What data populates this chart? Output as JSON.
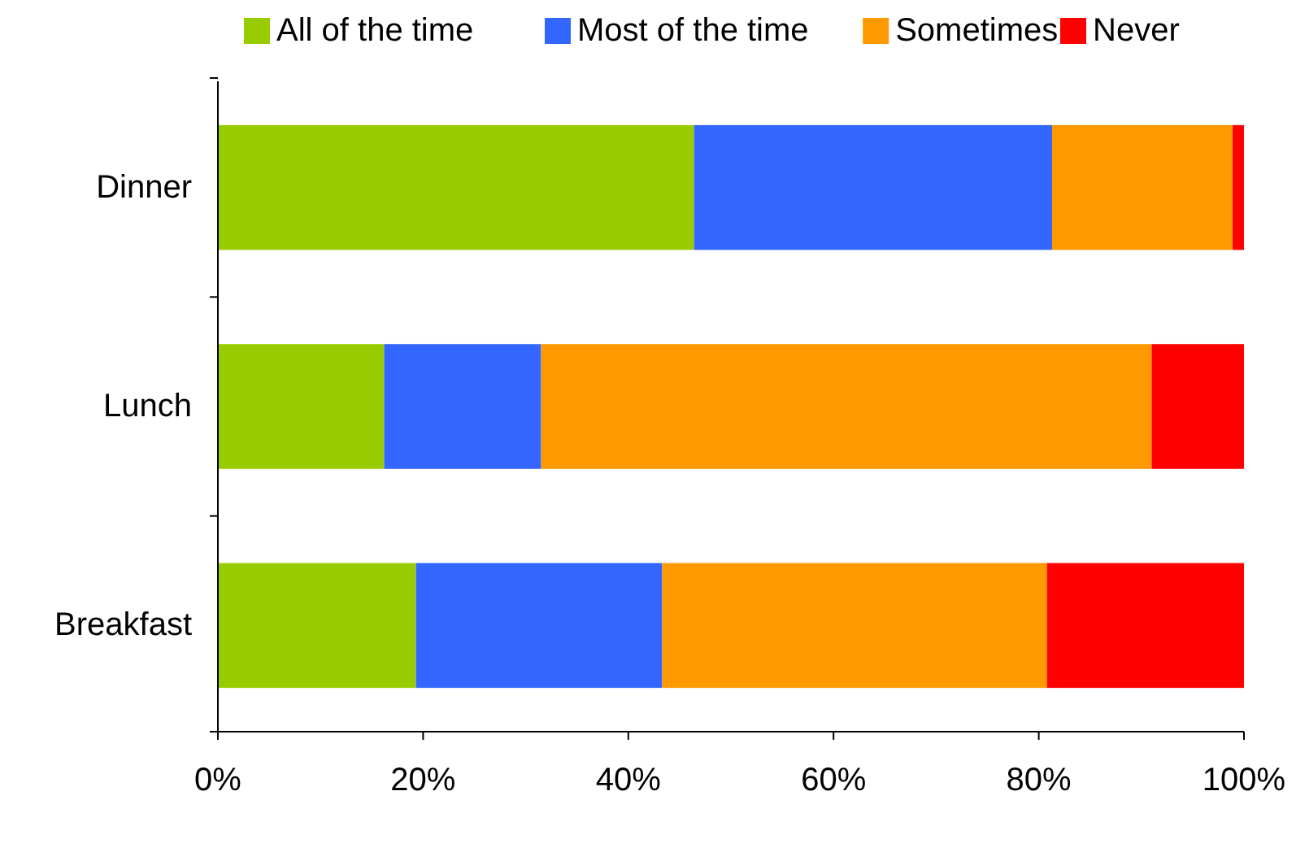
{
  "chart_data": {
    "type": "bar",
    "orientation": "horizontal",
    "stacked": true,
    "categories": [
      "Dinner",
      "Lunch",
      "Breakfast"
    ],
    "series": [
      {
        "name": "All of the time",
        "color": "#99cc00",
        "values": [
          46.4,
          16.2,
          19.3
        ]
      },
      {
        "name": "Most of the time",
        "color": "#3366ff",
        "values": [
          34.9,
          15.3,
          24.0
        ]
      },
      {
        "name": "Sometimes",
        "color": "#ff9900",
        "values": [
          17.6,
          59.5,
          37.5
        ]
      },
      {
        "name": "Never",
        "color": "#ff0000",
        "values": [
          1.1,
          9.0,
          19.2
        ]
      }
    ],
    "xlim": [
      0,
      100
    ],
    "xticks": [
      {
        "value": 0,
        "label": "0%"
      },
      {
        "value": 20,
        "label": "20%"
      },
      {
        "value": 40,
        "label": "40%"
      },
      {
        "value": 60,
        "label": "60%"
      },
      {
        "value": 80,
        "label": "80%"
      },
      {
        "value": 100,
        "label": "100%"
      }
    ],
    "grid": false,
    "legend": "top"
  }
}
